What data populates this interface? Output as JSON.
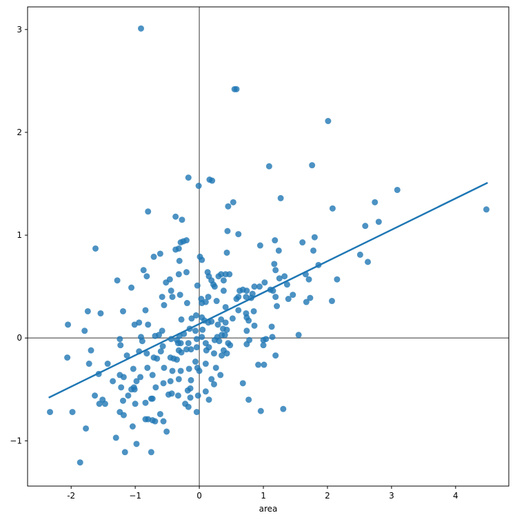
{
  "chart_data": {
    "type": "scatter",
    "xlabel": "area",
    "color": "#1f77b4",
    "x": [
      -0.91,
      0.55,
      0.58,
      2.01,
      1.76,
      1.09,
      -0.17,
      0.16,
      0.2,
      -0.01,
      3.09,
      1.27,
      0.53,
      0.45,
      2.08,
      4.48,
      -0.37,
      -0.27,
      -0.8,
      2.74,
      2.8,
      2.59,
      0.44,
      0.61,
      1.8,
      1.18,
      -0.2,
      -0.29,
      -0.25,
      -1.62,
      -0.37,
      -0.32,
      0.95,
      1.61,
      0.43,
      -0.61,
      -0.71,
      0.01,
      0.04,
      1.24,
      1.78,
      2.51,
      2.63,
      -0.31,
      -0.87,
      -0.2,
      0.13,
      -0.32,
      -0.82,
      0.34,
      0.41,
      0.47,
      1.86,
      1.17,
      1.19,
      0.15,
      0.3,
      1.25,
      1.33,
      1.66,
      1.71,
      2.15,
      -1.28,
      -0.46,
      -0.52,
      0.38,
      0.19,
      0.22,
      -0.03,
      -1.06,
      1.02,
      0.86,
      0.94,
      0.24,
      1.37,
      1.11,
      0.68,
      0.63,
      0.74,
      0.38,
      -0.44,
      0.83,
      1.15,
      1.46,
      1.39,
      1.19,
      -0.58,
      -0.42,
      -0.3,
      0.61,
      0.58,
      0.73,
      0.81,
      1.73,
      0.14,
      0.03,
      0.27,
      0.04,
      0.1,
      1.67,
      2.07,
      -0.19,
      -0.55,
      1.21,
      0.41,
      -1.74,
      -1.19,
      -0.84,
      0.61,
      0.85,
      -1.54,
      0.73,
      0.74,
      -0.05,
      0.04,
      0.52,
      0.77,
      -0.28,
      0.34,
      -0.12,
      0.08,
      0.14,
      0.19,
      -0.94,
      -1.01,
      -0.8,
      -2.05,
      0.41,
      0.29,
      1.13,
      0.86,
      -0.15,
      0.05,
      -0.06,
      0.37,
      0.43,
      -1.79,
      0.74,
      1.55,
      -0.58,
      -0.63,
      -0.69,
      -0.91,
      -0.24,
      -0.31,
      0.28,
      0.35,
      0.4,
      0.04,
      -0.04,
      1.14,
      1.04,
      1.0,
      0.78,
      0.45,
      0.24,
      0.31,
      -1.24,
      -0.89,
      -0.44,
      -0.35,
      -0.29,
      -0.33,
      -0.17,
      0.1,
      -1.23,
      1.0,
      0.74,
      0.48,
      -0.57,
      0.38,
      -0.04,
      0.11,
      0.15,
      -0.32,
      -0.28,
      -0.2,
      -0.13,
      -0.94,
      -0.6,
      -0.82,
      -1.69,
      -1.13,
      0.43,
      1.19,
      0.23,
      -0.45,
      -0.4,
      -0.66,
      -0.71,
      -0.35,
      0.35,
      -2.06,
      -1.72,
      -1.43,
      -0.06,
      0.1,
      0.92,
      1.01,
      -0.03,
      0.26,
      -1.03,
      -0.81,
      -0.55,
      -0.42,
      -0.29,
      -0.16,
      0,
      0.33,
      -1.57,
      -1.24,
      -1.18,
      -0.73,
      -0.92,
      -1.35,
      -0.98,
      -0.32,
      -0.56,
      -0.45,
      0.68,
      -0.13,
      0.19,
      0.23,
      -1.02,
      -0.68,
      -1.06,
      -1.01,
      -1.22,
      -1.11,
      -0.18,
      -0.14,
      0.1,
      -0.48,
      -0.43,
      -0.33,
      -0.02,
      -1.63,
      -1.51,
      -1.47,
      -1.56,
      -1.19,
      0.15,
      -0.73,
      -0.75,
      -0.14,
      0.77,
      -1.0,
      -0.84,
      -0.22,
      -0.17,
      1.31,
      -2.33,
      -1.98,
      -1.24,
      -0.04,
      0.96,
      -0.61,
      -1.18,
      -0.8,
      -0.73,
      -0.84,
      -0.69,
      -0.56,
      -1.04,
      -1.77,
      -0.51,
      -1.3,
      -0.98,
      -1.16,
      -0.75,
      -1.86
    ],
    "values": [
      3.01,
      2.42,
      2.42,
      2.11,
      1.68,
      1.67,
      1.56,
      1.54,
      1.53,
      1.48,
      1.44,
      1.36,
      1.32,
      1.28,
      1.26,
      1.25,
      1.18,
      1.15,
      1.23,
      1.32,
      1.13,
      1.09,
      1.04,
      1.01,
      0.98,
      0.95,
      0.95,
      0.93,
      0.94,
      0.87,
      0.86,
      0.87,
      0.9,
      0.93,
      0.83,
      0.82,
      0.79,
      0.79,
      0.76,
      0.85,
      0.85,
      0.81,
      0.74,
      0.75,
      0.66,
      0.64,
      0.64,
      0.62,
      0.6,
      0.62,
      0.62,
      0.62,
      0.71,
      0.72,
      0.66,
      0.6,
      0.6,
      0.58,
      0.6,
      0.62,
      0.57,
      0.57,
      0.56,
      0.57,
      0.54,
      0.56,
      0.56,
      0.52,
      0.51,
      0.49,
      0.54,
      0.5,
      0.5,
      0.5,
      0.52,
      0.47,
      0.47,
      0.46,
      0.46,
      0.46,
      0.46,
      0.43,
      0.46,
      0.42,
      0.38,
      0.4,
      0.4,
      0.4,
      0.42,
      0.4,
      0.38,
      0.4,
      0.39,
      0.39,
      0.4,
      0.38,
      0.36,
      0.34,
      0.35,
      0.35,
      0.36,
      0.34,
      0.32,
      0.31,
      0.3,
      0.26,
      0.26,
      0.27,
      0.27,
      0.26,
      0.24,
      0.24,
      0.2,
      0.22,
      0.2,
      0.19,
      0.17,
      0.18,
      0.18,
      0.19,
      0.17,
      0.15,
      0.16,
      0.15,
      0.13,
      0.13,
      0.13,
      0.15,
      0.13,
      0.11,
      0.12,
      0.09,
      0.08,
      0.07,
      0.09,
      0.08,
      0.07,
      0.07,
      0.03,
      0.07,
      0.03,
      0.02,
      0.01,
      0.04,
      0.02,
      0.01,
      0.03,
      0.03,
      0.01,
      -0.01,
      0.01,
      -0.01,
      -0.02,
      -0.02,
      -0.05,
      -0.02,
      -0.03,
      -0.01,
      -0.03,
      -0.01,
      -0.02,
      -0.05,
      -0.05,
      -0.05,
      -0.05,
      -0.07,
      -0.07,
      -0.06,
      -0.07,
      -0.08,
      -0.12,
      -0.09,
      -0.12,
      -0.09,
      -0.12,
      -0.14,
      -0.11,
      -0.11,
      -0.13,
      -0.13,
      -0.15,
      -0.12,
      -0.17,
      -0.15,
      -0.17,
      -0.15,
      -0.19,
      -0.2,
      -0.2,
      -0.19,
      -0.21,
      -0.17,
      -0.19,
      -0.25,
      -0.25,
      -0.23,
      -0.25,
      -0.26,
      -0.26,
      -0.29,
      -0.29,
      -0.3,
      -0.29,
      -0.29,
      -0.32,
      -0.32,
      -0.3,
      -0.32,
      -0.36,
      -0.35,
      -0.36,
      -0.38,
      -0.36,
      -0.38,
      -0.42,
      -0.42,
      -0.4,
      -0.44,
      -0.42,
      -0.44,
      -0.41,
      -0.4,
      -0.45,
      -0.48,
      -0.48,
      -0.5,
      -0.5,
      -0.48,
      -0.56,
      -0.51,
      -0.49,
      -0.52,
      -0.55,
      -0.54,
      -0.56,
      -0.56,
      -0.56,
      -0.6,
      -0.64,
      -0.64,
      -0.61,
      -0.6,
      -0.59,
      -0.59,
      -0.58,
      -0.6,
      -0.64,
      -0.63,
      -0.64,
      -0.67,
      -0.69,
      -0.72,
      -0.72,
      -0.72,
      -0.72,
      -0.71,
      -0.74,
      -0.75,
      -0.79,
      -0.8,
      -0.79,
      -0.81,
      -0.81,
      -0.86,
      -0.88,
      -0.91,
      -0.97,
      -1.03,
      -1.11,
      -1.11,
      -1.21
    ],
    "fit": {
      "x": [
        -2.35,
        4.5
      ],
      "values": [
        -0.58,
        1.51
      ]
    },
    "reference_lines": {
      "x": 0,
      "y": 0,
      "color": "#777777"
    },
    "xlim": [
      -2.68,
      4.83
    ],
    "ylim": [
      -1.44,
      3.22
    ],
    "xticks": [
      -2,
      {
        "value": -1,
        "label": "−1"
      },
      0,
      1,
      2,
      3,
      4
    ],
    "yticks": [
      {
        "value": -1,
        "label": "−1"
      },
      0,
      1,
      2,
      3
    ]
  }
}
